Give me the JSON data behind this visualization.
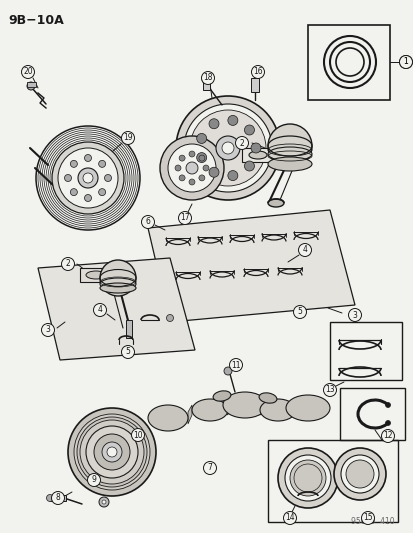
{
  "title": "9B−10A",
  "background_color": "#f2f2ee",
  "line_color": "#1a1a1a",
  "fig_width": 4.14,
  "fig_height": 5.33,
  "dpi": 100,
  "watermark": "95659  410"
}
